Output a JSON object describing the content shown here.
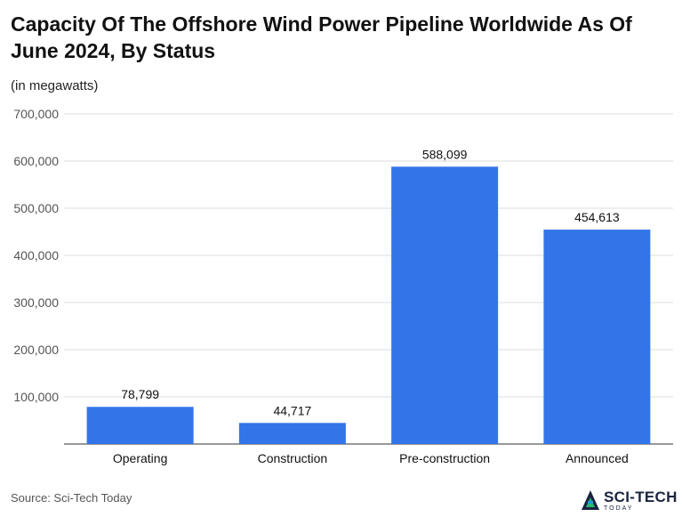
{
  "title": "Capacity Of The Offshore Wind Power Pipeline Worldwide As Of June 2024, By Status",
  "subtitle": "(in megawatts)",
  "source": "Source: Sci-Tech Today",
  "logo": {
    "main": "SCI-TECH",
    "sub": "TODAY"
  },
  "colors": {
    "bar": "#3375e8",
    "grid": "#dddddd",
    "axis": "#333333"
  },
  "chart_data": {
    "type": "bar",
    "categories": [
      "Operating",
      "Construction",
      "Pre-construction",
      "Announced"
    ],
    "values": [
      78799,
      44717,
      588099,
      454613
    ],
    "value_labels": [
      "78,799",
      "44,717",
      "588,099",
      "454,613"
    ],
    "ylim": [
      0,
      700000
    ],
    "yticks": [
      100000,
      200000,
      300000,
      400000,
      500000,
      600000,
      700000
    ],
    "ytick_labels": [
      "100,000",
      "200,000",
      "300,000",
      "400,000",
      "500,000",
      "600,000",
      "700,000"
    ],
    "grid": true,
    "legend": "none"
  }
}
